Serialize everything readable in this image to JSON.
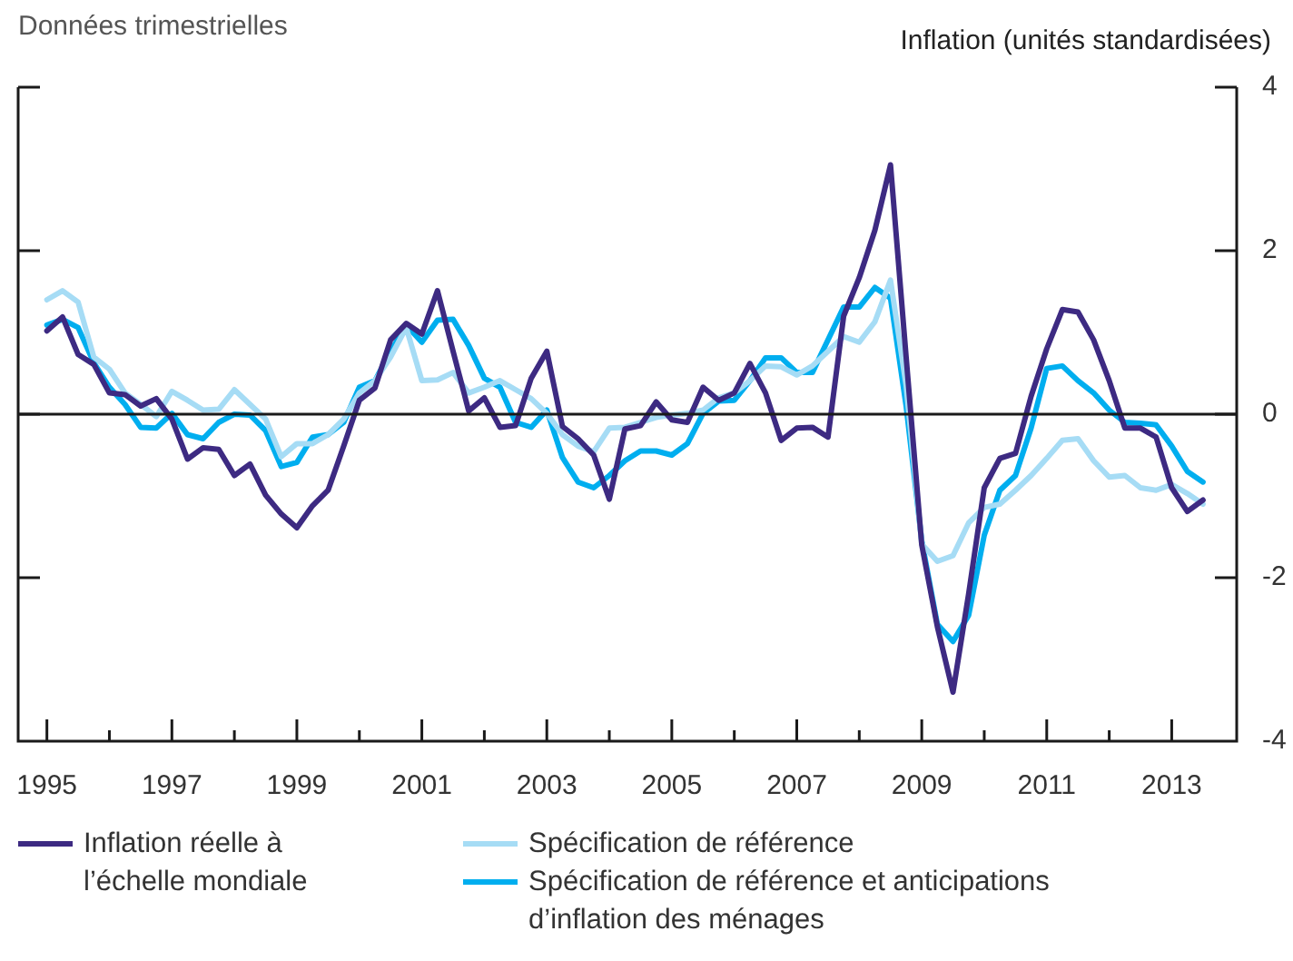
{
  "chart_data": {
    "type": "line",
    "subtitle": "Données trimestrielles",
    "ylabel": "Inflation (unités standardisées)",
    "x": [
      1995,
      1995.25,
      1995.5,
      1995.75,
      1996,
      1996.25,
      1996.5,
      1996.75,
      1997,
      1997.25,
      1997.5,
      1997.75,
      1998,
      1998.25,
      1998.5,
      1998.75,
      1999,
      1999.25,
      1999.5,
      1999.75,
      2000,
      2000.25,
      2000.5,
      2000.75,
      2001,
      2001.25,
      2001.5,
      2001.75,
      2002,
      2002.25,
      2002.5,
      2002.75,
      2003,
      2003.25,
      2003.5,
      2003.75,
      2004,
      2004.25,
      2004.5,
      2004.75,
      2005,
      2005.25,
      2005.5,
      2005.75,
      2006,
      2006.25,
      2006.5,
      2006.75,
      2007,
      2007.25,
      2007.5,
      2007.75,
      2008,
      2008.25,
      2008.5,
      2008.75,
      2009,
      2009.25,
      2009.5,
      2009.75,
      2010,
      2010.25,
      2010.5,
      2010.75,
      2011,
      2011.25,
      2011.5,
      2011.75,
      2012,
      2012.25,
      2012.5,
      2012.75,
      2013,
      2013.25,
      2013.5
    ],
    "series": [
      {
        "name": "Inflation réelle à l’échelle mondiale",
        "color": "#3d2a82",
        "values": [
          1.02,
          1.19,
          0.73,
          0.61,
          0.26,
          0.24,
          0.1,
          0.19,
          -0.06,
          -0.55,
          -0.41,
          -0.43,
          -0.75,
          -0.61,
          -0.99,
          -1.22,
          -1.39,
          -1.12,
          -0.93,
          -0.39,
          0.17,
          0.32,
          0.91,
          1.11,
          0.98,
          1.51,
          0.77,
          0.04,
          0.2,
          -0.16,
          -0.14,
          0.44,
          0.77,
          -0.15,
          -0.3,
          -0.5,
          -1.04,
          -0.18,
          -0.14,
          0.15,
          -0.07,
          -0.1,
          0.33,
          0.17,
          0.26,
          0.62,
          0.26,
          -0.32,
          -0.17,
          -0.16,
          -0.28,
          1.2,
          1.67,
          2.25,
          3.05,
          0.7,
          -1.6,
          -2.6,
          -3.4,
          -2.2,
          -0.9,
          -0.54,
          -0.48,
          0.22,
          0.8,
          1.28,
          1.25,
          0.91,
          0.41,
          -0.17,
          -0.17,
          -0.28,
          -0.9,
          -1.19,
          -1.05
        ]
      },
      {
        "name": "Spécification de référence",
        "color": "#a6dcf5",
        "values": [
          1.4,
          1.51,
          1.37,
          0.7,
          0.55,
          0.26,
          0.12,
          -0.03,
          0.28,
          0.17,
          0.05,
          0.06,
          0.3,
          0.12,
          -0.06,
          -0.52,
          -0.36,
          -0.36,
          -0.25,
          -0.06,
          0.26,
          0.41,
          0.7,
          1.06,
          0.41,
          0.42,
          0.51,
          0.26,
          0.33,
          0.41,
          0.3,
          0.19,
          0.01,
          -0.25,
          -0.39,
          -0.46,
          -0.17,
          -0.16,
          -0.1,
          -0.04,
          -0.01,
          0.01,
          0.05,
          0.2,
          0.26,
          0.41,
          0.59,
          0.58,
          0.48,
          0.59,
          0.77,
          0.95,
          0.88,
          1.13,
          1.64,
          0.35,
          -1.59,
          -1.8,
          -1.73,
          -1.33,
          -1.14,
          -1.1,
          -0.93,
          -0.75,
          -0.54,
          -0.32,
          -0.3,
          -0.57,
          -0.77,
          -0.75,
          -0.9,
          -0.93,
          -0.86,
          -0.97,
          -1.1
        ]
      },
      {
        "name": "Spécification de référence et anticipations d’inflation des ménages",
        "color": "#00aeef",
        "values": [
          1.09,
          1.16,
          1.06,
          0.63,
          0.33,
          0.12,
          -0.16,
          -0.17,
          0.01,
          -0.25,
          -0.3,
          -0.1,
          0.0,
          -0.01,
          -0.2,
          -0.64,
          -0.59,
          -0.28,
          -0.25,
          -0.1,
          0.33,
          0.41,
          0.77,
          1.09,
          0.88,
          1.15,
          1.16,
          0.84,
          0.44,
          0.33,
          -0.1,
          -0.16,
          0.05,
          -0.53,
          -0.83,
          -0.9,
          -0.75,
          -0.57,
          -0.45,
          -0.45,
          -0.5,
          -0.36,
          0.01,
          0.16,
          0.17,
          0.41,
          0.69,
          0.69,
          0.51,
          0.51,
          0.91,
          1.31,
          1.31,
          1.55,
          1.42,
          0.1,
          -1.55,
          -2.57,
          -2.78,
          -2.46,
          -1.48,
          -0.93,
          -0.75,
          -0.17,
          0.56,
          0.59,
          0.41,
          0.26,
          0.05,
          -0.1,
          -0.11,
          -0.13,
          -0.39,
          -0.7,
          -0.83
        ]
      }
    ],
    "xlim": [
      1994.54,
      2014.04
    ],
    "xticks": [
      1995,
      {
        "value": 1996,
        "label": null
      },
      1997,
      {
        "value": 1998,
        "label": null
      },
      1999,
      {
        "value": 2000,
        "label": null
      },
      2001,
      {
        "value": 2002,
        "label": null
      },
      2003,
      {
        "value": 2004,
        "label": null
      },
      2005,
      {
        "value": 2006,
        "label": null
      },
      2007,
      {
        "value": 2008,
        "label": null
      },
      2009,
      {
        "value": 2010,
        "label": null
      },
      2011,
      {
        "value": 2012,
        "label": null
      },
      2013
    ],
    "ylim": [
      -4,
      4
    ],
    "yticks": [
      -4,
      -2,
      0,
      2,
      4
    ],
    "ref_lines": [
      {
        "axis": "y",
        "value": 0,
        "color": "#1a1a1a"
      }
    ],
    "grid": false,
    "legend": "bottom",
    "marker": "none",
    "line_style": "solid"
  }
}
